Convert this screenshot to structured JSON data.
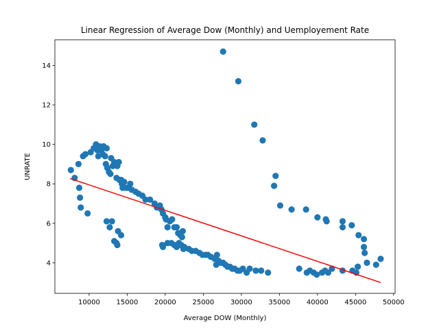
{
  "chart_data": {
    "type": "scatter",
    "title": "Linear Regression of Average Dow (Monthly) and Uemployement Rate",
    "xlabel": "Average DOW (Monthly)",
    "ylabel": "UNRATE",
    "xlim": [
      5500,
      50200
    ],
    "ylim": [
      2.45,
      15.3
    ],
    "xticks": [
      10000,
      15000,
      20000,
      25000,
      30000,
      35000,
      40000,
      45000,
      50000
    ],
    "yticks": [
      4,
      6,
      8,
      10,
      12,
      14
    ],
    "grid": false,
    "point_color": "#1f77b4",
    "line_color": "#ff0000",
    "regression_line": {
      "x": [
        7500,
        48300
      ],
      "y": [
        8.27,
        3.0
      ]
    },
    "points": [
      [
        7600,
        8.7
      ],
      [
        8100,
        8.3
      ],
      [
        8600,
        9.0
      ],
      [
        8700,
        7.8
      ],
      [
        8800,
        7.3
      ],
      [
        8900,
        6.8
      ],
      [
        9200,
        9.4
      ],
      [
        9500,
        9.5
      ],
      [
        9800,
        6.5
      ],
      [
        10200,
        9.6
      ],
      [
        10600,
        9.8
      ],
      [
        10900,
        10.0
      ],
      [
        11100,
        9.7
      ],
      [
        11200,
        9.4
      ],
      [
        11400,
        9.9
      ],
      [
        11600,
        9.7
      ],
      [
        11800,
        9.5
      ],
      [
        11900,
        9.9
      ],
      [
        12100,
        9.4
      ],
      [
        12200,
        9.0
      ],
      [
        12300,
        9.8
      ],
      [
        12400,
        8.8
      ],
      [
        12600,
        8.6
      ],
      [
        12800,
        8.5
      ],
      [
        12900,
        9.3
      ],
      [
        13100,
        8.9
      ],
      [
        13300,
        9.1
      ],
      [
        13500,
        9.0
      ],
      [
        13600,
        8.3
      ],
      [
        13700,
        8.9
      ],
      [
        13900,
        9.1
      ],
      [
        14000,
        8.2
      ],
      [
        14200,
        8.2
      ],
      [
        14300,
        8.0
      ],
      [
        14400,
        7.8
      ],
      [
        14600,
        8.1
      ],
      [
        14800,
        7.8
      ],
      [
        15100,
        7.8
      ],
      [
        15400,
        8.0
      ],
      [
        15600,
        7.7
      ],
      [
        16100,
        7.6
      ],
      [
        16500,
        7.5
      ],
      [
        17000,
        7.4
      ],
      [
        17400,
        7.2
      ],
      [
        18000,
        7.2
      ],
      [
        18600,
        7.0
      ],
      [
        18900,
        6.8
      ],
      [
        19300,
        6.9
      ],
      [
        19500,
        6.7
      ],
      [
        19700,
        6.5
      ],
      [
        20000,
        6.3
      ],
      [
        20100,
        6.2
      ],
      [
        20300,
        5.8
      ],
      [
        20600,
        6.1
      ],
      [
        20900,
        6.2
      ],
      [
        21200,
        5.8
      ],
      [
        21500,
        5.8
      ],
      [
        21700,
        5.5
      ],
      [
        21900,
        5.5
      ],
      [
        22000,
        5.4
      ],
      [
        22200,
        5.3
      ],
      [
        22300,
        5.6
      ],
      [
        12300,
        6.1
      ],
      [
        12700,
        5.8
      ],
      [
        13000,
        6.1
      ],
      [
        13300,
        5.1
      ],
      [
        13600,
        5.0
      ],
      [
        13700,
        4.9
      ],
      [
        13800,
        5.6
      ],
      [
        14200,
        5.4
      ],
      [
        19600,
        4.9
      ],
      [
        19700,
        4.8
      ],
      [
        20300,
        5.0
      ],
      [
        20800,
        5.0
      ],
      [
        21200,
        4.9
      ],
      [
        21500,
        4.8
      ],
      [
        21800,
        5.0
      ],
      [
        22100,
        4.9
      ],
      [
        22400,
        4.7
      ],
      [
        22500,
        4.8
      ],
      [
        23100,
        4.7
      ],
      [
        23500,
        4.6
      ],
      [
        24000,
        4.6
      ],
      [
        24500,
        4.5
      ],
      [
        24900,
        4.4
      ],
      [
        25300,
        4.4
      ],
      [
        25600,
        4.4
      ],
      [
        26000,
        4.3
      ],
      [
        26500,
        4.2
      ],
      [
        26700,
        3.9
      ],
      [
        27000,
        4.1
      ],
      [
        27300,
        4.0
      ],
      [
        27600,
        4.0
      ],
      [
        27900,
        3.9
      ],
      [
        28200,
        3.8
      ],
      [
        28500,
        3.8
      ],
      [
        28800,
        3.7
      ],
      [
        29100,
        3.7
      ],
      [
        29500,
        3.6
      ],
      [
        29800,
        3.6
      ],
      [
        30200,
        3.7
      ],
      [
        30700,
        3.5
      ],
      [
        31100,
        3.7
      ],
      [
        31900,
        3.6
      ],
      [
        32600,
        3.6
      ],
      [
        33500,
        3.5
      ],
      [
        37600,
        3.7
      ],
      [
        38600,
        3.5
      ],
      [
        39000,
        3.6
      ],
      [
        39500,
        3.5
      ],
      [
        39900,
        3.4
      ],
      [
        40600,
        3.5
      ],
      [
        41000,
        3.6
      ],
      [
        41400,
        3.5
      ],
      [
        41900,
        3.7
      ],
      [
        43300,
        3.6
      ],
      [
        44600,
        3.6
      ],
      [
        45100,
        3.5
      ],
      [
        45300,
        3.8
      ],
      [
        26800,
        4.4
      ],
      [
        27600,
        14.7
      ],
      [
        29600,
        13.2
      ],
      [
        31700,
        11.0
      ],
      [
        32800,
        10.2
      ],
      [
        34500,
        8.4
      ],
      [
        34300,
        7.9
      ],
      [
        35100,
        6.9
      ],
      [
        36600,
        6.7
      ],
      [
        38500,
        6.7
      ],
      [
        40000,
        6.3
      ],
      [
        41100,
        6.2
      ],
      [
        41200,
        6.1
      ],
      [
        43300,
        6.1
      ],
      [
        43300,
        5.8
      ],
      [
        44500,
        5.9
      ],
      [
        45400,
        5.4
      ],
      [
        46100,
        5.2
      ],
      [
        46100,
        4.8
      ],
      [
        46200,
        4.5
      ],
      [
        46500,
        4.0
      ],
      [
        47700,
        3.9
      ],
      [
        48300,
        4.2
      ]
    ]
  }
}
